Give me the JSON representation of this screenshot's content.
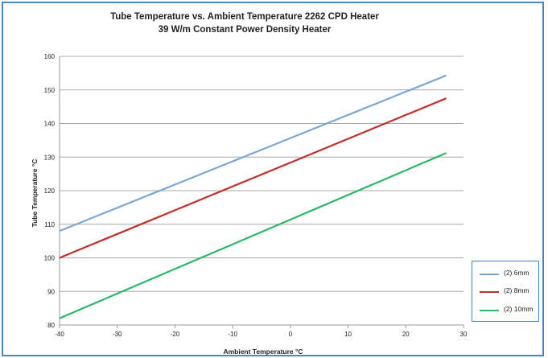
{
  "chart_data": {
    "type": "line",
    "title": "Tube Temperature vs.  Ambient Temperature 2262 CPD Heater",
    "subtitle": "39 W/m  Constant Power Density Heater",
    "xlabel": "Ambient Temperature  °C",
    "ylabel": "Tube Temperature  °C",
    "xlim": [
      -40,
      30
    ],
    "ylim": [
      80,
      160
    ],
    "xticks": [
      -40,
      -30,
      -20,
      -10,
      0,
      10,
      20,
      30
    ],
    "yticks": [
      80,
      90,
      100,
      110,
      120,
      130,
      140,
      150,
      160
    ],
    "grid": "horizontal",
    "legend_position": "right",
    "series": [
      {
        "name": "(2) 6mm",
        "color": "#7aa6d8",
        "x": [
          -40,
          27
        ],
        "y": [
          108,
          154.3
        ]
      },
      {
        "name": "(2) 8mm",
        "color": "#c0302b",
        "x": [
          -40,
          27
        ],
        "y": [
          100,
          147.5
        ]
      },
      {
        "name": "(2) 10mm",
        "color": "#2eb56a",
        "x": [
          -40,
          27
        ],
        "y": [
          82,
          131.2
        ]
      }
    ]
  }
}
